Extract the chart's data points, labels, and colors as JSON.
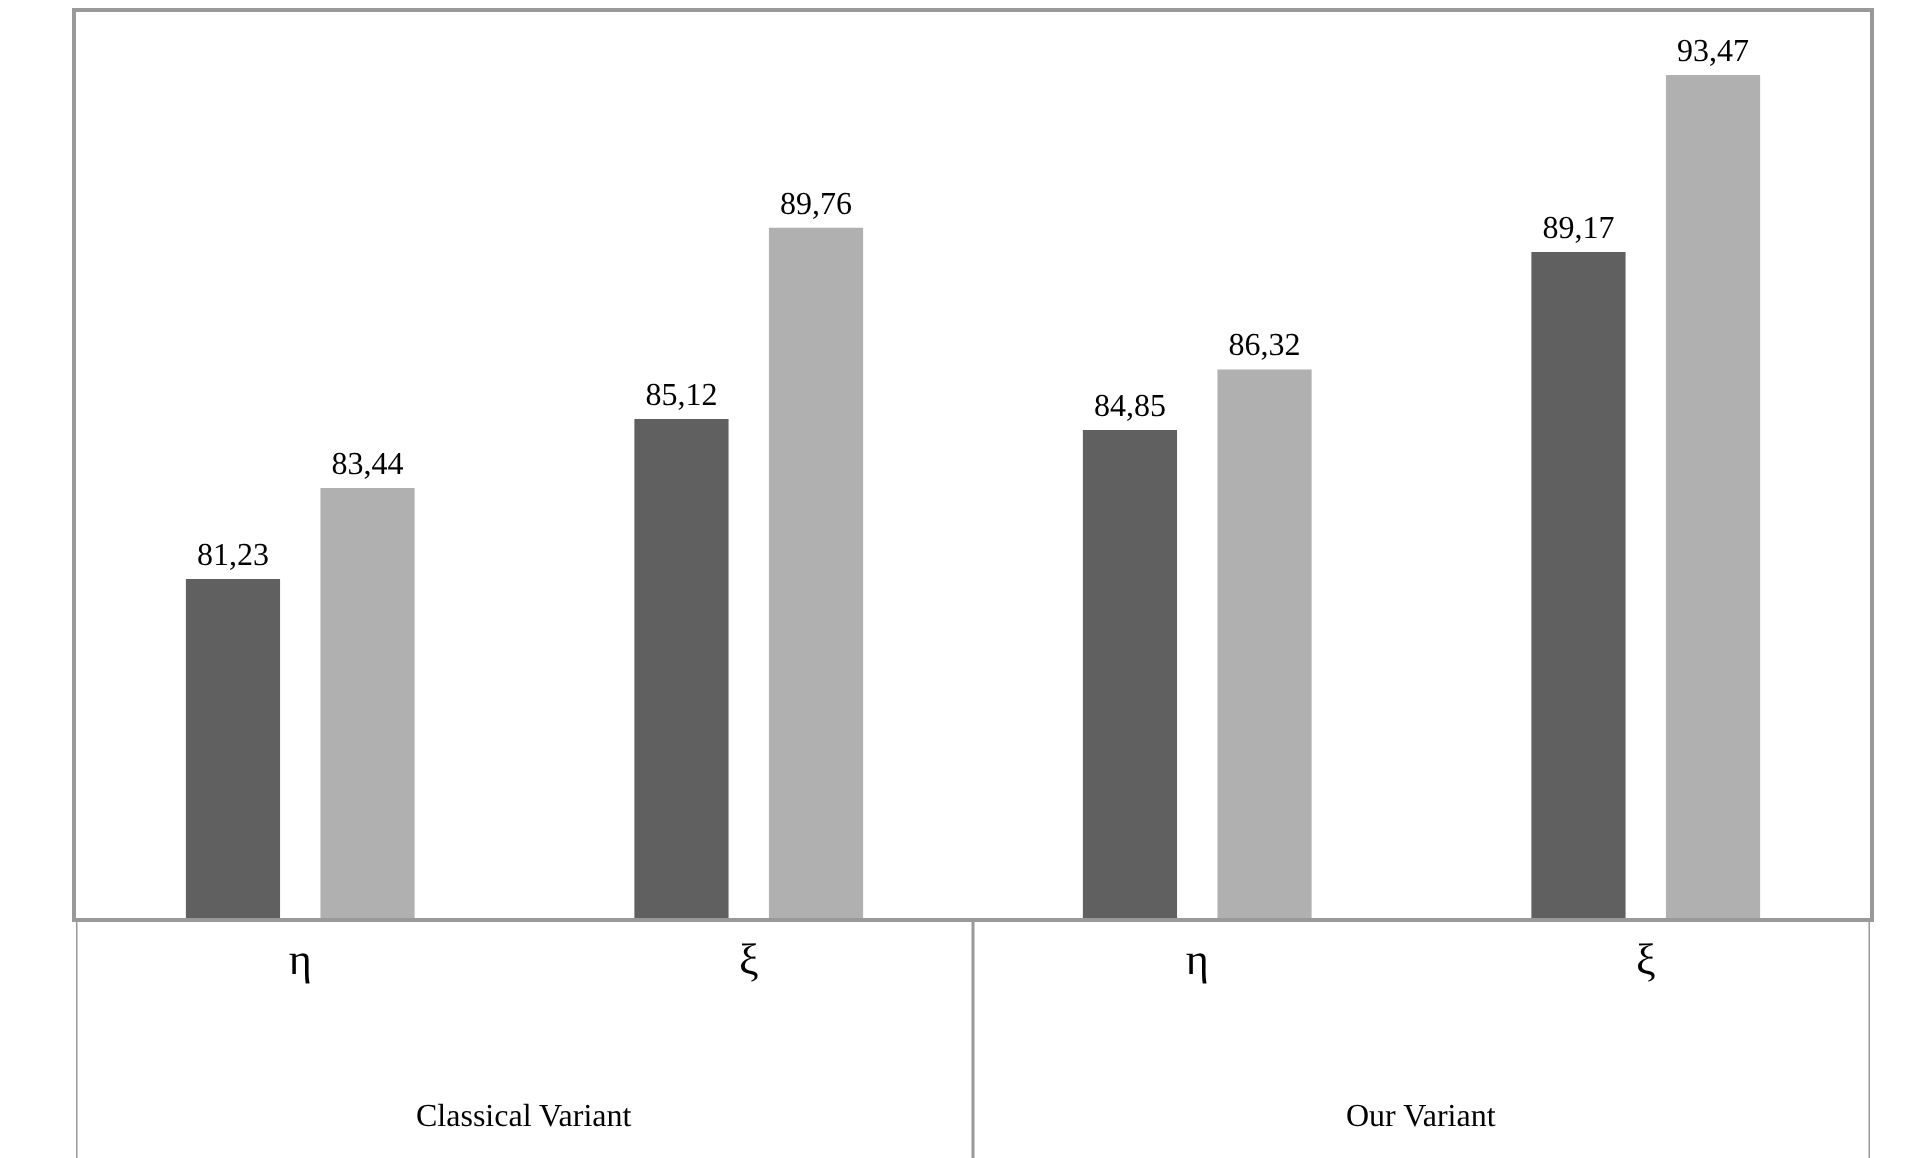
{
  "chart_data": {
    "type": "bar",
    "categories": [
      "η",
      "ξ",
      "η",
      "ξ"
    ],
    "series": [
      {
        "color": "#606060",
        "values": [
          81.23,
          85.12,
          84.85,
          89.17
        ],
        "value_labels": [
          "81,23",
          "85,12",
          "84,85",
          "89,17"
        ]
      },
      {
        "color": "#b0b0b0",
        "values": [
          83.44,
          89.76,
          86.32,
          93.47
        ],
        "value_labels": [
          "83,44",
          "89,76",
          "86,32",
          "93,47"
        ]
      }
    ],
    "ylim": [
      73,
      95
    ],
    "tick_labels": "x",
    "grid": false,
    "legend": false,
    "annotations": [
      "Classical Variant",
      "Our Variant"
    ]
  }
}
